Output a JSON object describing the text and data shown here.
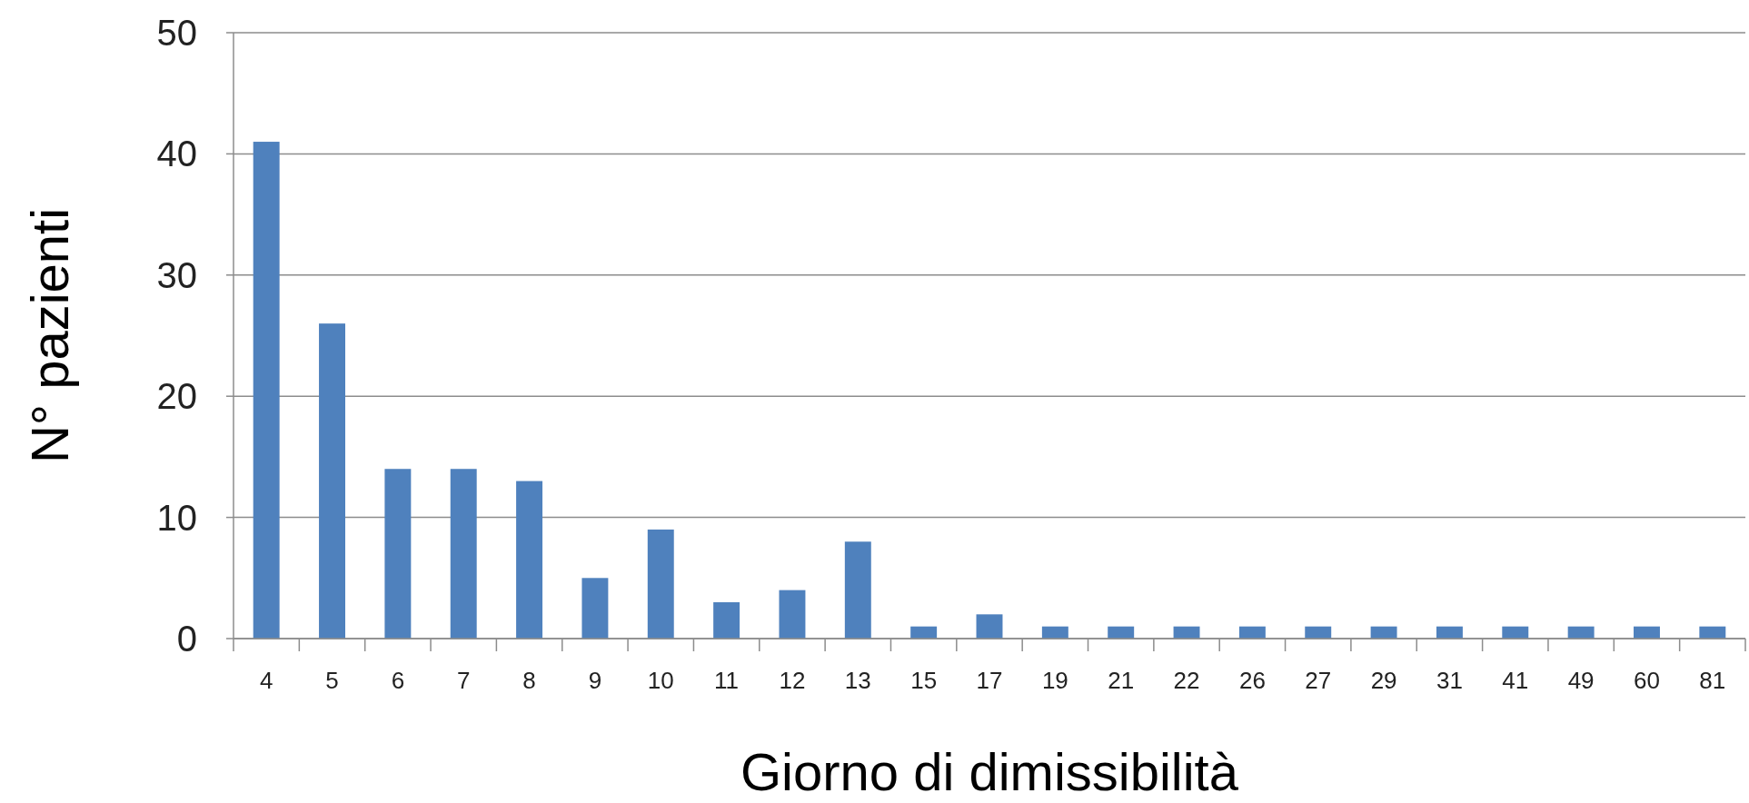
{
  "chart_data": {
    "type": "bar",
    "xlabel": "Giorno di dimissibilità",
    "ylabel": "N° pazienti",
    "categories": [
      "4",
      "5",
      "6",
      "7",
      "8",
      "9",
      "10",
      "11",
      "12",
      "13",
      "15",
      "17",
      "19",
      "21",
      "22",
      "26",
      "27",
      "29",
      "31",
      "41",
      "49",
      "60",
      "81"
    ],
    "values": [
      41,
      26,
      14,
      14,
      13,
      5,
      9,
      3,
      4,
      8,
      1,
      2,
      1,
      1,
      1,
      1,
      1,
      1,
      1,
      1,
      1,
      1,
      1
    ],
    "color": "#4f81bd",
    "ylim": [
      0,
      50
    ],
    "yticks": [
      0,
      10,
      20,
      30,
      40,
      50
    ],
    "grid": "y"
  }
}
